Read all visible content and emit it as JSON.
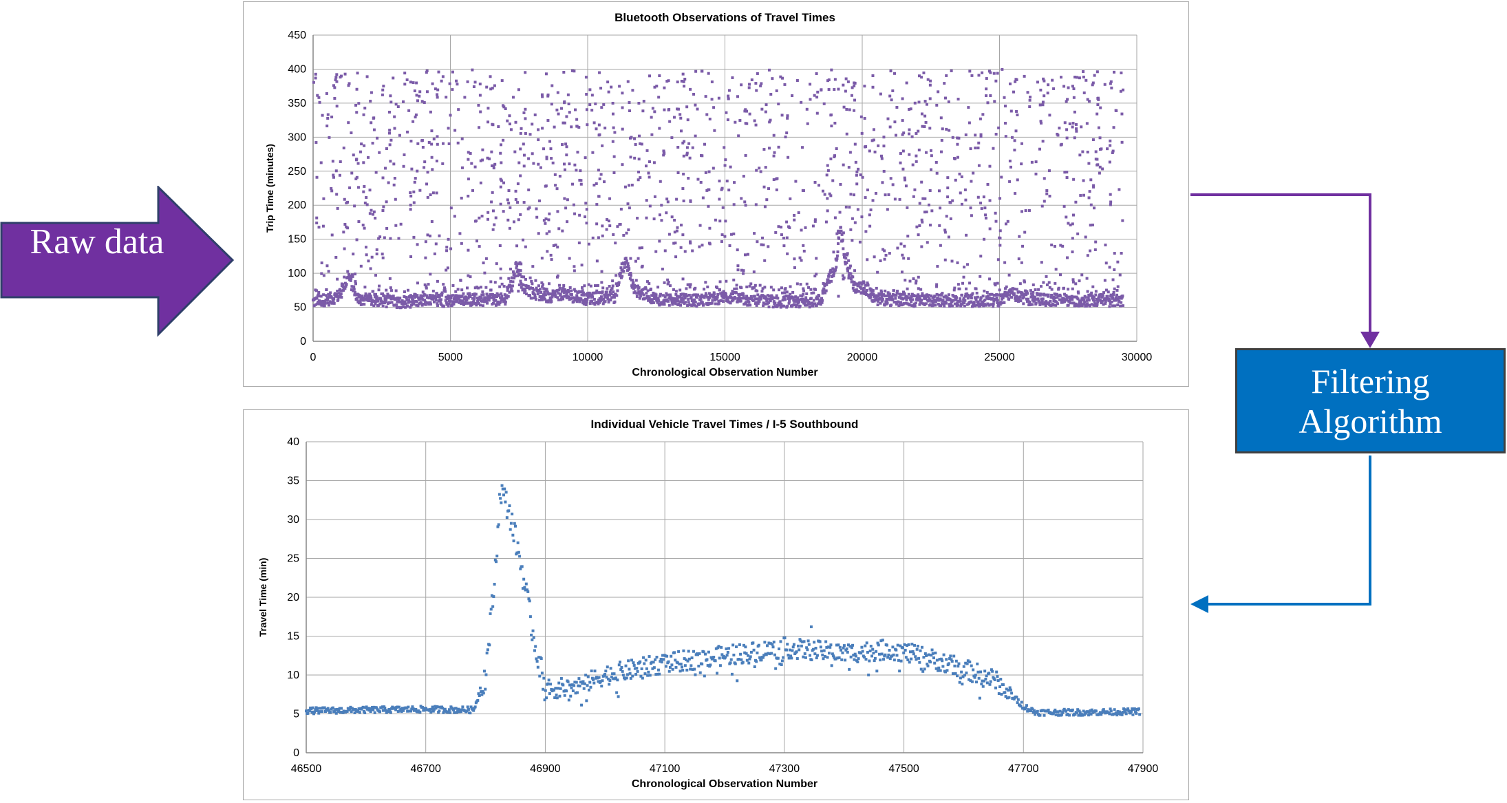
{
  "raw_label": "Raw data",
  "filter_box": {
    "line1": "Filtering",
    "line2": "Algorithm"
  },
  "colors": {
    "purple": "#7030a0",
    "blue": "#0070c0",
    "raw_points": "#7b5ba8",
    "filtered_points": "#4a7ebb",
    "grid": "#a6a6a6"
  },
  "chart_data": [
    {
      "type": "scatter",
      "title": "Bluetooth Observations of Travel Times",
      "xlabel": "Chronological Observation Number",
      "ylabel": "Trip Time (minutes)",
      "xlim": [
        0,
        30000
      ],
      "ylim": [
        0,
        450
      ],
      "xticks": [
        0,
        5000,
        10000,
        15000,
        20000,
        25000,
        30000
      ],
      "yticks": [
        0,
        50,
        100,
        150,
        200,
        250,
        300,
        350,
        400,
        450
      ],
      "grid": true,
      "series": [
        {
          "points_note": "approximately 29,500 observations; baseline ~50-70 min with scattered outliers up to 400 min",
          "baseline": [
            [
              0,
              58
            ],
            [
              600,
              62
            ],
            [
              1000,
              68
            ],
            [
              1300,
              95
            ],
            [
              1600,
              62
            ],
            [
              3000,
              58
            ],
            [
              5000,
              60
            ],
            [
              7000,
              62
            ],
            [
              7200,
              80
            ],
            [
              7400,
              110
            ],
            [
              7700,
              75
            ],
            [
              8500,
              65
            ],
            [
              9000,
              70
            ],
            [
              10000,
              62
            ],
            [
              11000,
              65
            ],
            [
              11200,
              100
            ],
            [
              11400,
              115
            ],
            [
              11700,
              75
            ],
            [
              12500,
              62
            ],
            [
              14000,
              60
            ],
            [
              15000,
              65
            ],
            [
              16000,
              60
            ],
            [
              17500,
              58
            ],
            [
              18500,
              60
            ],
            [
              18800,
              95
            ],
            [
              19000,
              100
            ],
            [
              19200,
              165
            ],
            [
              19400,
              120
            ],
            [
              19700,
              80
            ],
            [
              20200,
              75
            ],
            [
              20500,
              62
            ],
            [
              22000,
              60
            ],
            [
              24000,
              60
            ],
            [
              25000,
              60
            ],
            [
              25500,
              70
            ],
            [
              26000,
              62
            ],
            [
              28000,
              60
            ],
            [
              29500,
              60
            ]
          ]
        }
      ]
    },
    {
      "type": "scatter",
      "title": "Individual Vehicle Travel Times / I-5 Southbound",
      "xlabel": "Chronological Observation Number",
      "ylabel": "Travel Time (min)",
      "xlim": [
        46500,
        47900
      ],
      "ylim": [
        0,
        40
      ],
      "xticks": [
        46500,
        46700,
        46900,
        47100,
        47300,
        47500,
        47700,
        47900
      ],
      "yticks": [
        0,
        5,
        10,
        15,
        20,
        25,
        30,
        35,
        40
      ],
      "grid": true,
      "series": [
        {
          "trend": [
            [
              46500,
              5.4
            ],
            [
              46600,
              5.5
            ],
            [
              46700,
              5.6
            ],
            [
              46780,
              5.5
            ],
            [
              46800,
              10
            ],
            [
              46815,
              22
            ],
            [
              46825,
              34
            ],
            [
              46840,
              31
            ],
            [
              46860,
              24
            ],
            [
              46880,
              15
            ],
            [
              46900,
              8.2
            ],
            [
              46950,
              8.4
            ],
            [
              47000,
              10
            ],
            [
              47100,
              11.5
            ],
            [
              47200,
              12.5
            ],
            [
              47300,
              13.5
            ],
            [
              47400,
              12.8
            ],
            [
              47480,
              13.3
            ],
            [
              47550,
              12
            ],
            [
              47650,
              9.5
            ],
            [
              47700,
              6
            ],
            [
              47720,
              5.2
            ],
            [
              47800,
              5.2
            ],
            [
              47900,
              5.3
            ]
          ]
        }
      ]
    }
  ]
}
